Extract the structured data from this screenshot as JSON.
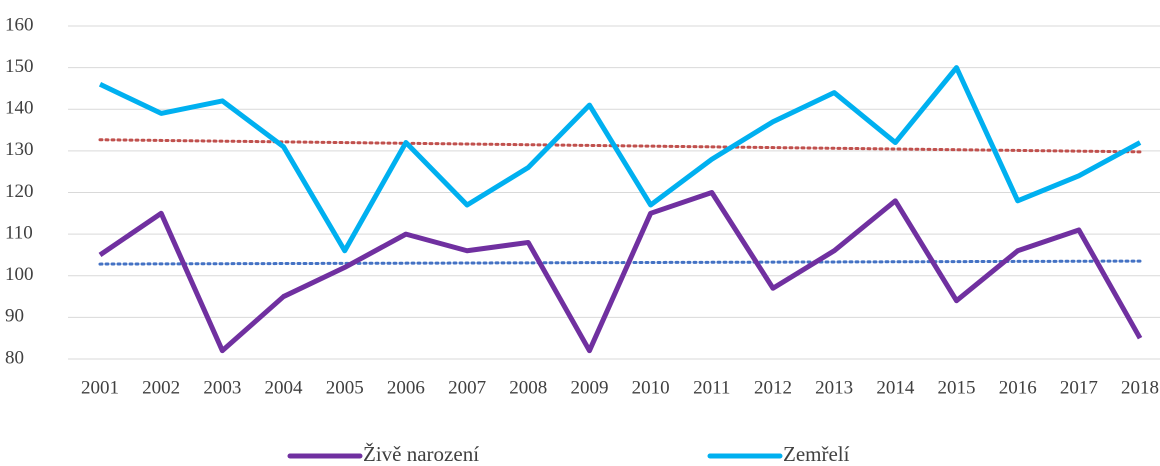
{
  "chart_data": {
    "type": "line",
    "categories": [
      "2001",
      "2002",
      "2003",
      "2004",
      "2005",
      "2006",
      "2007",
      "2008",
      "2009",
      "2010",
      "2011",
      "2012",
      "2013",
      "2014",
      "2015",
      "2016",
      "2017",
      "2018"
    ],
    "series": [
      {
        "name": "Živě narození",
        "color": "#7030a0",
        "trendline_color": "#4472c4",
        "values": [
          105,
          115,
          82,
          95,
          102,
          110,
          106,
          108,
          82,
          115,
          120,
          97,
          106,
          118,
          94,
          106,
          111,
          85
        ]
      },
      {
        "name": "Zemřelí",
        "color": "#00b0f0",
        "trendline_color": "#c0504d",
        "values": [
          146,
          139,
          142,
          131,
          106,
          132,
          117,
          126,
          141,
          117,
          128,
          137,
          144,
          132,
          150,
          118,
          124,
          132
        ]
      }
    ],
    "ylim": [
      80,
      160
    ],
    "yticks": [
      80,
      90,
      100,
      110,
      120,
      130,
      140,
      150,
      160
    ],
    "grid": true,
    "trendline": true,
    "legend": "bottom"
  }
}
